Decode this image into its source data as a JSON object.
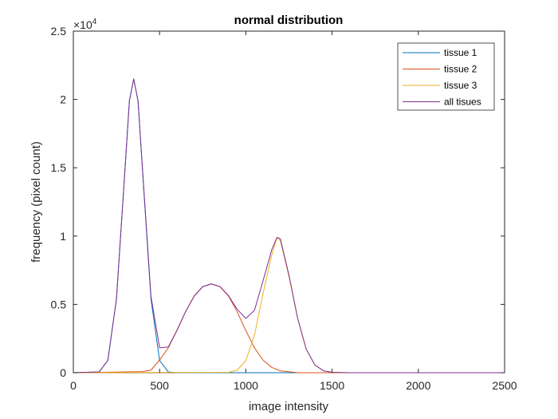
{
  "chart_data": {
    "type": "line",
    "title": "normal distribution",
    "xlabel": "image intensity",
    "ylabel": "frequency (pixel count)",
    "xlim": [
      0,
      2500
    ],
    "ylim": [
      0,
      25000
    ],
    "x_ticks": [
      0,
      500,
      1000,
      1500,
      2000,
      2500
    ],
    "x_tick_labels": [
      "0",
      "500",
      "1000",
      "1500",
      "2000",
      "2500"
    ],
    "y_ticks": [
      0,
      5000,
      10000,
      15000,
      20000,
      25000
    ],
    "y_tick_labels": [
      "0",
      "0.5",
      "1",
      "1.5",
      "2",
      "2.5"
    ],
    "y_exponent_label": "×10",
    "y_exponent_power": "4",
    "grid": false,
    "legend_position": "top-right",
    "series": [
      {
        "name": "tissue 1",
        "color": "#0072BD",
        "points": [
          [
            0,
            0
          ],
          [
            150,
            60
          ],
          [
            200,
            900
          ],
          [
            250,
            5400
          ],
          [
            300,
            15000
          ],
          [
            325,
            19900
          ],
          [
            350,
            21500
          ],
          [
            375,
            19900
          ],
          [
            400,
            15000
          ],
          [
            450,
            5400
          ],
          [
            500,
            900
          ],
          [
            550,
            60
          ],
          [
            600,
            0
          ],
          [
            2500,
            0
          ]
        ]
      },
      {
        "name": "tissue 2",
        "color": "#D95319",
        "points": [
          [
            0,
            0
          ],
          [
            400,
            80
          ],
          [
            450,
            190
          ],
          [
            500,
            920
          ],
          [
            550,
            1820
          ],
          [
            600,
            3080
          ],
          [
            650,
            4450
          ],
          [
            700,
            5600
          ],
          [
            750,
            6300
          ],
          [
            800,
            6500
          ],
          [
            850,
            6300
          ],
          [
            900,
            5600
          ],
          [
            950,
            4450
          ],
          [
            1000,
            3080
          ],
          [
            1050,
            1820
          ],
          [
            1100,
            920
          ],
          [
            1150,
            390
          ],
          [
            1200,
            140
          ],
          [
            1300,
            0
          ],
          [
            2500,
            0
          ]
        ]
      },
      {
        "name": "tissue 3",
        "color": "#EDB120",
        "points": [
          [
            0,
            0
          ],
          [
            900,
            30
          ],
          [
            950,
            190
          ],
          [
            1000,
            890
          ],
          [
            1050,
            2750
          ],
          [
            1100,
            5820
          ],
          [
            1150,
            8600
          ],
          [
            1180,
            9900
          ],
          [
            1200,
            9660
          ],
          [
            1250,
            7050
          ],
          [
            1300,
            4000
          ],
          [
            1350,
            1720
          ],
          [
            1400,
            570
          ],
          [
            1450,
            140
          ],
          [
            1500,
            30
          ],
          [
            1600,
            0
          ],
          [
            2500,
            0
          ]
        ]
      },
      {
        "name": "all tisues",
        "color": "#7E2F8E",
        "points": [
          [
            0,
            0
          ],
          [
            150,
            60
          ],
          [
            200,
            900
          ],
          [
            250,
            5400
          ],
          [
            300,
            15000
          ],
          [
            325,
            19900
          ],
          [
            350,
            21500
          ],
          [
            375,
            19900
          ],
          [
            400,
            15080
          ],
          [
            450,
            5590
          ],
          [
            500,
            1820
          ],
          [
            550,
            1880
          ],
          [
            600,
            3080
          ],
          [
            650,
            4450
          ],
          [
            700,
            5600
          ],
          [
            750,
            6300
          ],
          [
            800,
            6500
          ],
          [
            850,
            6300
          ],
          [
            900,
            5630
          ],
          [
            950,
            4640
          ],
          [
            1000,
            3970
          ],
          [
            1050,
            4570
          ],
          [
            1100,
            6740
          ],
          [
            1150,
            8990
          ],
          [
            1180,
            9900
          ],
          [
            1200,
            9800
          ],
          [
            1250,
            7140
          ],
          [
            1300,
            4000
          ],
          [
            1350,
            1720
          ],
          [
            1400,
            570
          ],
          [
            1450,
            140
          ],
          [
            1500,
            30
          ],
          [
            1600,
            0
          ],
          [
            2500,
            0
          ]
        ]
      }
    ]
  }
}
